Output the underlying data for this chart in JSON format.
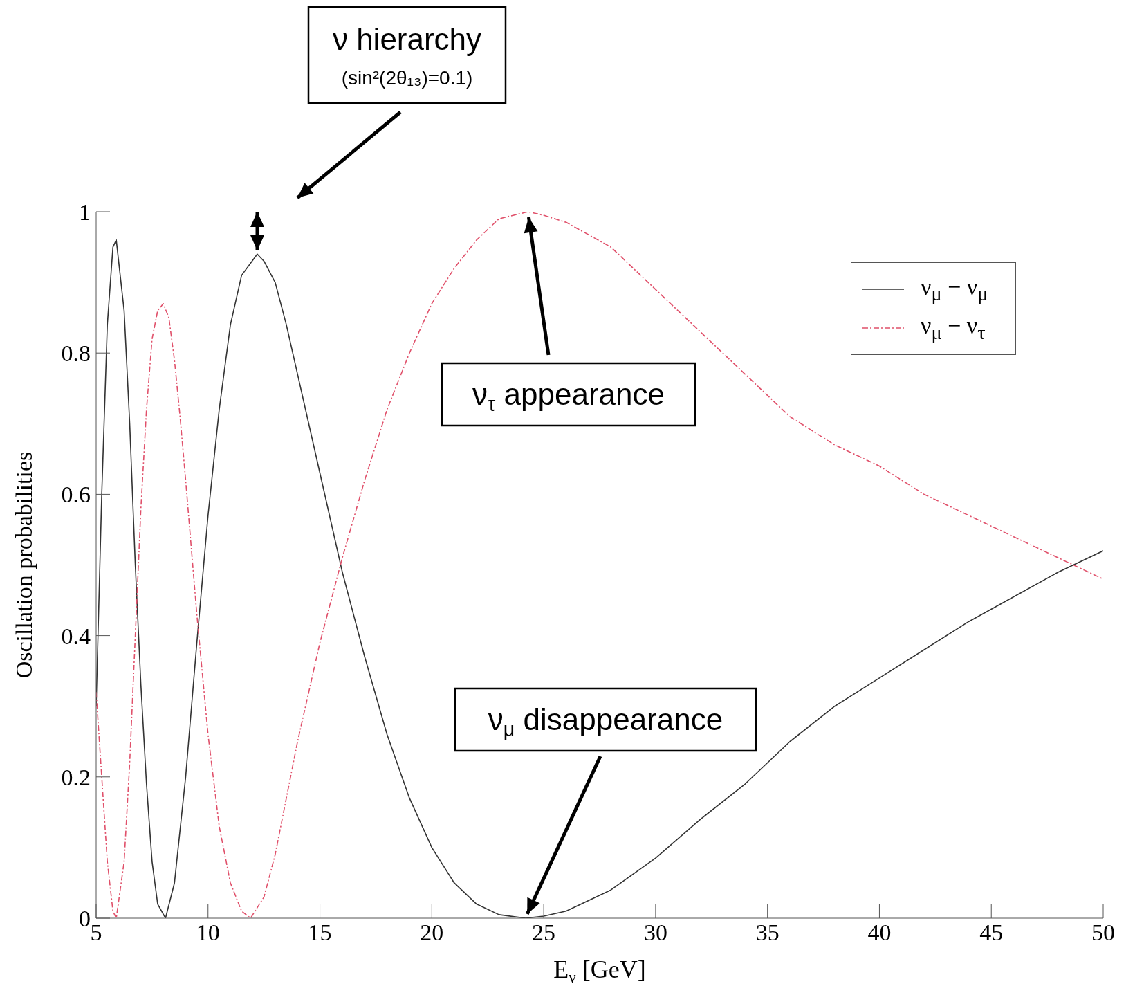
{
  "chart_data": {
    "type": "line",
    "xlabel": "E$_{ν}$ [GeV]",
    "ylabel": "Oscillation probabilities",
    "xlim": [
      5,
      50
    ],
    "xticks": [
      5,
      10,
      15,
      20,
      25,
      30,
      35,
      40,
      45,
      50
    ],
    "ylim": [
      0,
      1
    ],
    "yticks": [
      0,
      0.2,
      0.4,
      0.6,
      0.8,
      1
    ],
    "grid": false,
    "legend": "top right",
    "marker": "none",
    "annotations": [
      "ν hierarchy",
      "(sin²(2θ₁₃)=0.1)",
      {
        "text": "ν$_{τ}$ appearance",
        "x": 24.3,
        "y": 1
      },
      {
        "text": "ν$_{μ}$ disappearance",
        "x": 24.2,
        "y": 0
      }
    ],
    "series": [
      {
        "name": "ν$_{μ}$ − ν$_{μ}$",
        "color": "#333333",
        "line_style": "solid",
        "x": [
          5,
          5.25,
          5.5,
          5.75,
          5.9,
          6.25,
          6.5,
          6.75,
          7,
          7.25,
          7.5,
          7.75,
          8.1,
          8.5,
          9,
          9.5,
          10,
          10.5,
          11,
          11.5,
          12.2,
          12.5,
          13,
          13.5,
          14,
          15,
          16,
          17,
          18,
          19,
          20,
          21,
          22,
          23,
          24.2,
          25,
          26,
          28,
          30,
          32,
          34,
          36,
          38,
          40,
          42,
          44,
          46,
          48,
          50
        ],
        "values": [
          0.3,
          0.6,
          0.84,
          0.95,
          0.96,
          0.86,
          0.7,
          0.5,
          0.33,
          0.19,
          0.08,
          0.02,
          0,
          0.05,
          0.2,
          0.39,
          0.57,
          0.72,
          0.84,
          0.91,
          0.94,
          0.93,
          0.9,
          0.84,
          0.77,
          0.63,
          0.49,
          0.37,
          0.26,
          0.17,
          0.1,
          0.05,
          0.02,
          0.005,
          0,
          0.003,
          0.01,
          0.04,
          0.085,
          0.14,
          0.19,
          0.25,
          0.3,
          0.34,
          0.38,
          0.42,
          0.455,
          0.49,
          0.52
        ]
      },
      {
        "name": "ν$_{μ}$ − ν$_{τ}$",
        "color": "#e0506a",
        "line_style": "dashed",
        "x": [
          5,
          5.25,
          5.5,
          5.75,
          5.9,
          6.25,
          6.5,
          6.75,
          7,
          7.25,
          7.5,
          7.75,
          8,
          8.25,
          8.5,
          8.75,
          9,
          9.5,
          10,
          10.5,
          11,
          11.5,
          11.9,
          12.5,
          13,
          13.5,
          14,
          15,
          16,
          17,
          18,
          19,
          20,
          21,
          22,
          23,
          24.3,
          25,
          26,
          28,
          30,
          32,
          34,
          36,
          38,
          40,
          42,
          44,
          46,
          48,
          50
        ],
        "values": [
          0.32,
          0.2,
          0.08,
          0.01,
          0,
          0.08,
          0.22,
          0.4,
          0.58,
          0.72,
          0.82,
          0.86,
          0.87,
          0.85,
          0.79,
          0.71,
          0.62,
          0.43,
          0.26,
          0.13,
          0.05,
          0.01,
          0,
          0.03,
          0.09,
          0.17,
          0.25,
          0.39,
          0.51,
          0.62,
          0.72,
          0.8,
          0.87,
          0.92,
          0.96,
          0.99,
          1,
          0.995,
          0.985,
          0.95,
          0.89,
          0.83,
          0.77,
          0.71,
          0.67,
          0.64,
          0.6,
          0.57,
          0.54,
          0.51,
          0.48
        ]
      }
    ]
  }
}
